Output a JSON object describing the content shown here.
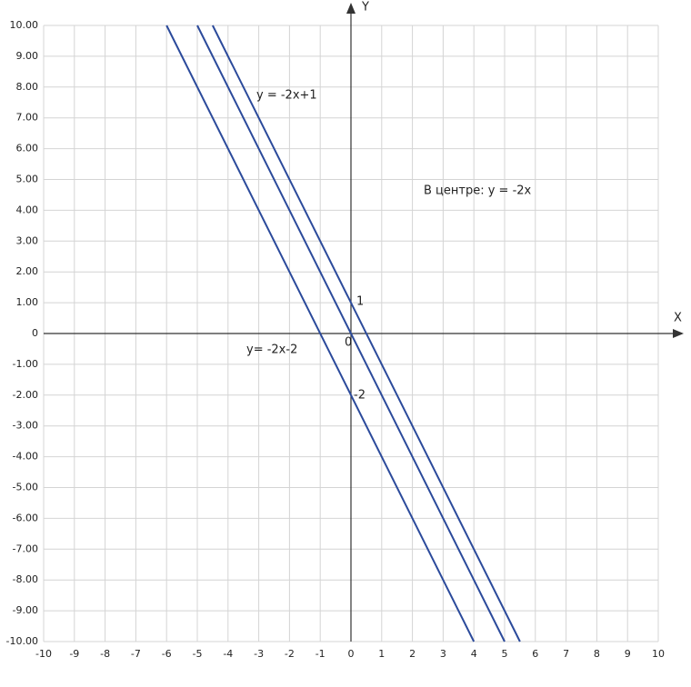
{
  "chart_data": {
    "type": "line",
    "xlabel": "X",
    "ylabel": "Y",
    "annotations": [
      "y = -2x+1",
      "В центре: y = -2x",
      "y= -2x-2",
      "1",
      "0",
      "-2"
    ],
    "series": [
      {
        "color": "#2b4a9b",
        "x": [
          -4.5,
          5.5
        ],
        "values": [
          10,
          -10
        ]
      },
      {
        "color": "#2b4a9b",
        "x": [
          -5,
          5
        ],
        "values": [
          10,
          -10
        ]
      },
      {
        "color": "#2b4a9b",
        "x": [
          -6,
          4
        ],
        "values": [
          10,
          -10
        ]
      }
    ],
    "xlim": [
      -10,
      10
    ],
    "ylim": [
      -10,
      10
    ],
    "xticks": [
      -10,
      -9,
      -8,
      -7,
      -6,
      -5,
      -4,
      -3,
      -2,
      -1,
      0,
      1,
      2,
      3,
      4,
      5,
      6,
      7,
      8,
      9,
      10
    ],
    "yticks": [
      {
        "value": 10,
        "label": "10.00"
      },
      {
        "value": 9,
        "label": "9.00"
      },
      {
        "value": 8,
        "label": "8.00"
      },
      {
        "value": 7,
        "label": "7.00"
      },
      {
        "value": 6,
        "label": "6.00"
      },
      {
        "value": 5,
        "label": "5.00"
      },
      {
        "value": 4,
        "label": "4.00"
      },
      {
        "value": 3,
        "label": "3.00"
      },
      {
        "value": 2,
        "label": "2.00"
      },
      {
        "value": 1,
        "label": "1.00"
      },
      0,
      {
        "value": -1,
        "label": "-1.00"
      },
      {
        "value": -2,
        "label": "-2.00"
      },
      {
        "value": -3,
        "label": "-3.00"
      },
      {
        "value": -4,
        "label": "-4.00"
      },
      {
        "value": -5,
        "label": "-5.00"
      },
      {
        "value": -6,
        "label": "-6.00"
      },
      {
        "value": -7,
        "label": "-7.00"
      },
      {
        "value": -8,
        "label": "-8.00"
      },
      {
        "value": -9,
        "label": "-9.00"
      },
      {
        "value": -10,
        "label": "-10.00"
      }
    ],
    "grid": true
  }
}
